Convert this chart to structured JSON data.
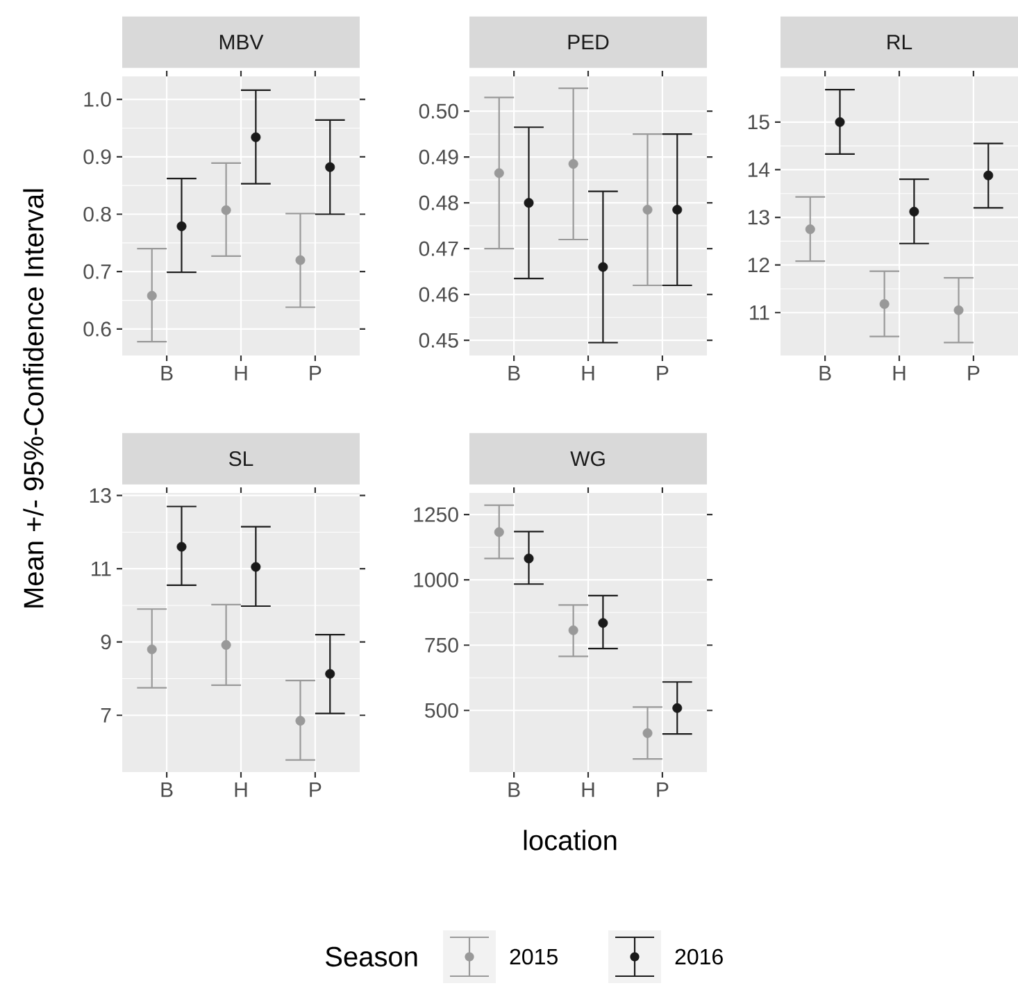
{
  "chart_data": [
    {
      "type": "scatter",
      "title": "MBV",
      "categories": [
        "B",
        "H",
        "P"
      ],
      "ylabel": "Mean +/- 95%-Confidence Interval",
      "legend": "bottom",
      "legend_title": "Season",
      "marker": "circle",
      "grid": true,
      "ylim": [
        0.554,
        1.04
      ],
      "yticks": [
        0.6,
        0.7,
        0.8,
        0.9,
        {
          "value": 1.0,
          "label": "1.0"
        }
      ],
      "series": [
        {
          "name": "2015",
          "color": "#999999",
          "values": [
            0.658,
            0.807,
            0.72
          ],
          "errors": [
            [
              0.578,
              0.74
            ],
            [
              0.727,
              0.889
            ],
            [
              0.638,
              0.801
            ]
          ]
        },
        {
          "name": "2016",
          "color": "#1a1a1a",
          "values": [
            0.779,
            0.934,
            0.882
          ],
          "errors": [
            [
              0.699,
              0.862
            ],
            [
              0.853,
              1.016
            ],
            [
              0.8,
              0.964
            ]
          ]
        }
      ]
    },
    {
      "type": "scatter",
      "title": "PED",
      "categories": [
        "B",
        "H",
        "P"
      ],
      "marker": "circle",
      "grid": true,
      "ylim": [
        0.4467,
        0.5076
      ],
      "yticks": [
        0.45,
        0.46,
        0.47,
        0.48,
        0.49,
        {
          "value": 0.5,
          "label": "0.50"
        }
      ],
      "series": [
        {
          "color": "#999999",
          "values": [
            0.4865,
            0.4885,
            0.4785
          ],
          "errors": [
            [
              0.47,
              0.503
            ],
            [
              0.472,
              0.505
            ],
            [
              0.462,
              0.495
            ]
          ]
        },
        {
          "color": "#1a1a1a",
          "values": [
            0.48,
            0.466,
            0.4785
          ],
          "errors": [
            [
              0.4635,
              0.4965
            ],
            [
              0.4495,
              0.4825
            ],
            [
              0.462,
              0.495
            ]
          ]
        }
      ]
    },
    {
      "type": "scatter",
      "title": "RL",
      "categories": [
        "B",
        "H",
        "P"
      ],
      "marker": "circle",
      "grid": true,
      "ylim": [
        10.1,
        15.96
      ],
      "yticks": [
        11,
        12,
        13,
        14,
        15
      ],
      "series": [
        {
          "color": "#999999",
          "values": [
            12.75,
            11.18,
            11.05
          ],
          "errors": [
            [
              12.08,
              13.43
            ],
            [
              10.5,
              11.87
            ],
            [
              10.37,
              11.73
            ]
          ]
        },
        {
          "color": "#1a1a1a",
          "values": [
            15.0,
            13.12,
            13.88
          ],
          "errors": [
            [
              14.33,
              15.68
            ],
            [
              12.45,
              13.8
            ],
            [
              13.2,
              14.55
            ]
          ]
        }
      ]
    },
    {
      "type": "scatter",
      "title": "SL",
      "categories": [
        "B",
        "H",
        "P"
      ],
      "marker": "circle",
      "grid": true,
      "ylim": [
        5.45,
        13.07
      ],
      "yticks": [
        7,
        9,
        11,
        13
      ],
      "series": [
        {
          "color": "#999999",
          "values": [
            8.8,
            8.92,
            6.85
          ],
          "errors": [
            [
              7.75,
              9.9
            ],
            [
              7.82,
              10.02
            ],
            [
              5.78,
              7.95
            ]
          ]
        },
        {
          "color": "#1a1a1a",
          "values": [
            11.6,
            11.05,
            8.13
          ],
          "errors": [
            [
              10.55,
              12.7
            ],
            [
              9.98,
              12.15
            ],
            [
              7.05,
              9.2
            ]
          ]
        }
      ]
    },
    {
      "type": "scatter",
      "title": "WG",
      "categories": [
        "B",
        "H",
        "P"
      ],
      "xlabel": "location",
      "marker": "circle",
      "grid": true,
      "ylim": [
        264,
        1333
      ],
      "yticks": [
        500,
        750,
        1000,
        1250
      ],
      "series": [
        {
          "color": "#999999",
          "values": [
            1183,
            807,
            413
          ],
          "errors": [
            [
              1082,
              1286
            ],
            [
              707,
              904
            ],
            [
              314,
              513
            ]
          ]
        },
        {
          "color": "#1a1a1a",
          "values": [
            1082,
            835,
            509
          ],
          "errors": [
            [
              984,
              1185
            ],
            [
              737,
              940
            ],
            [
              410,
              609
            ]
          ]
        }
      ]
    }
  ]
}
